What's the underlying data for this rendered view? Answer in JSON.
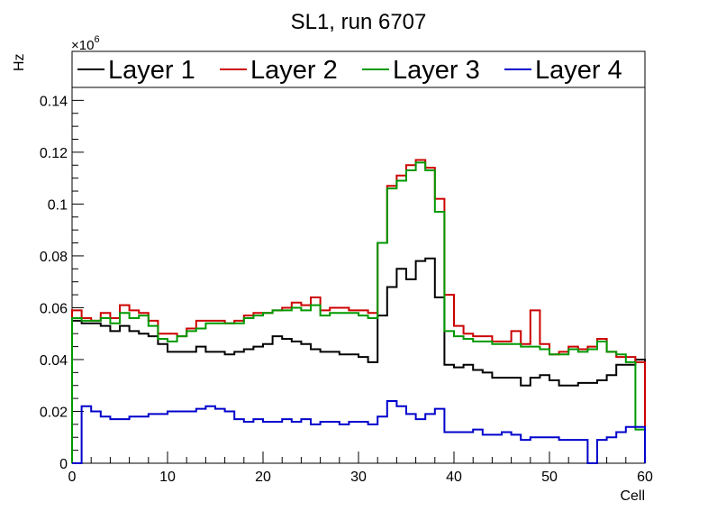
{
  "chart_data": {
    "type": "line",
    "title": "SL1, run 6707",
    "xlabel": "Cell",
    "ylabel": "Hz",
    "y_exponent_label": "×10",
    "y_exponent_power": "6",
    "xlim": [
      0,
      60
    ],
    "ylim": [
      0,
      0.145
    ],
    "x_ticks": [
      0,
      10,
      20,
      30,
      40,
      50,
      60
    ],
    "y_ticks": [
      0,
      0.02,
      0.04,
      0.06,
      0.08,
      0.1,
      0.12,
      0.14
    ],
    "y_tick_labels": [
      "0",
      "0.02",
      "0.04",
      "0.06",
      "0.08",
      "0.1",
      "0.12",
      "0.14"
    ],
    "x_tick_labels": [
      "0",
      "10",
      "20",
      "30",
      "40",
      "50",
      "60"
    ],
    "grid": false,
    "legend_position": "top",
    "bin_edges_start": 0,
    "bin_width": 1,
    "series": [
      {
        "name": "Layer 1",
        "color": "#000000",
        "values": [
          0.055,
          0.054,
          0.054,
          0.053,
          0.051,
          0.053,
          0.051,
          0.05,
          0.049,
          0.046,
          0.043,
          0.043,
          0.043,
          0.045,
          0.043,
          0.043,
          0.042,
          0.043,
          0.044,
          0.045,
          0.046,
          0.049,
          0.048,
          0.047,
          0.046,
          0.044,
          0.043,
          0.043,
          0.042,
          0.042,
          0.041,
          0.039,
          0.057,
          0.068,
          0.075,
          0.071,
          0.078,
          0.079,
          0.064,
          0.038,
          0.037,
          0.038,
          0.036,
          0.035,
          0.033,
          0.033,
          0.033,
          0.03,
          0.033,
          0.034,
          0.032,
          0.03,
          0.03,
          0.031,
          0.031,
          0.032,
          0.034,
          0.038,
          0.038,
          0.04
        ]
      },
      {
        "name": "Layer 2",
        "color": "#cc0000",
        "values": [
          0.059,
          0.056,
          0.055,
          0.058,
          0.056,
          0.061,
          0.059,
          0.058,
          0.055,
          0.05,
          0.05,
          0.049,
          0.052,
          0.055,
          0.055,
          0.055,
          0.054,
          0.055,
          0.057,
          0.058,
          0.058,
          0.059,
          0.06,
          0.062,
          0.061,
          0.064,
          0.059,
          0.06,
          0.06,
          0.059,
          0.059,
          0.058,
          0.085,
          0.107,
          0.111,
          0.115,
          0.117,
          0.114,
          0.102,
          0.065,
          0.053,
          0.05,
          0.049,
          0.049,
          0.047,
          0.047,
          0.051,
          0.046,
          0.059,
          0.046,
          0.042,
          0.043,
          0.045,
          0.044,
          0.045,
          0.048,
          0.043,
          0.041,
          0.041,
          0.039
        ]
      },
      {
        "name": "Layer 3",
        "color": "#009900",
        "values": [
          0.056,
          0.055,
          0.055,
          0.056,
          0.054,
          0.058,
          0.056,
          0.057,
          0.053,
          0.048,
          0.047,
          0.049,
          0.051,
          0.052,
          0.054,
          0.054,
          0.054,
          0.054,
          0.056,
          0.057,
          0.058,
          0.059,
          0.059,
          0.06,
          0.059,
          0.061,
          0.057,
          0.058,
          0.058,
          0.058,
          0.057,
          0.056,
          0.085,
          0.106,
          0.109,
          0.113,
          0.116,
          0.113,
          0.097,
          0.051,
          0.049,
          0.048,
          0.047,
          0.047,
          0.046,
          0.046,
          0.046,
          0.045,
          0.045,
          0.044,
          0.042,
          0.042,
          0.044,
          0.043,
          0.044,
          0.047,
          0.043,
          0.042,
          0.039,
          0.013
        ]
      },
      {
        "name": "Layer 4",
        "color": "#0000cc",
        "values": [
          0.0,
          0.022,
          0.02,
          0.018,
          0.017,
          0.017,
          0.018,
          0.018,
          0.019,
          0.019,
          0.02,
          0.02,
          0.02,
          0.021,
          0.022,
          0.021,
          0.02,
          0.017,
          0.016,
          0.017,
          0.016,
          0.016,
          0.017,
          0.016,
          0.017,
          0.015,
          0.016,
          0.016,
          0.015,
          0.016,
          0.016,
          0.015,
          0.018,
          0.024,
          0.022,
          0.019,
          0.017,
          0.019,
          0.021,
          0.012,
          0.012,
          0.012,
          0.013,
          0.011,
          0.011,
          0.012,
          0.011,
          0.009,
          0.01,
          0.01,
          0.01,
          0.009,
          0.009,
          0.009,
          0.0,
          0.009,
          0.01,
          0.012,
          0.014,
          0.014
        ]
      }
    ]
  }
}
